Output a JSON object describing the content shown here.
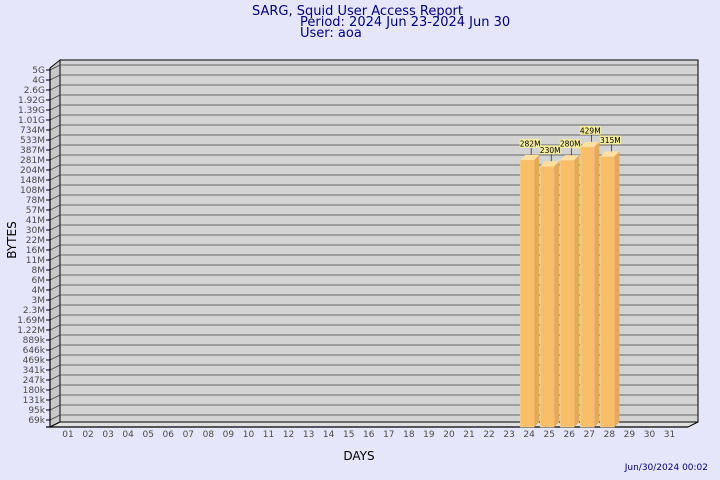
{
  "header": {
    "title": "SARG, Squid User Access Report",
    "period": "Period: 2024 Jun 23-2024 Jun 30",
    "user": "User: aoa"
  },
  "footer": {
    "timestamp": "Jun/30/2024 00:02"
  },
  "colors": {
    "background": "#e6e6fa",
    "plot_area": "#d3d3d3",
    "bar_front": "#f8bf68",
    "bar_side": "#e8a85a",
    "bar_top": "#ffe0a0",
    "label_box": "#f4eca0",
    "title_text": "#00007d"
  },
  "chart_data": {
    "type": "bar",
    "title": "SARG, Squid User Access Report",
    "xlabel": "DAYS",
    "ylabel": "BYTES",
    "scale": "log",
    "grid": true,
    "x_ticks": [
      "01",
      "02",
      "03",
      "04",
      "05",
      "06",
      "07",
      "08",
      "09",
      "10",
      "11",
      "12",
      "13",
      "14",
      "15",
      "16",
      "17",
      "18",
      "19",
      "20",
      "21",
      "22",
      "23",
      "24",
      "25",
      "26",
      "27",
      "28",
      "29",
      "30",
      "31"
    ],
    "y_ticks": [
      "69k",
      "95k",
      "131k",
      "180k",
      "247k",
      "341k",
      "469k",
      "646k",
      "889k",
      "1.22M",
      "1.69M",
      "2.3M",
      "3M",
      "4M",
      "6M",
      "8M",
      "11M",
      "16M",
      "22M",
      "30M",
      "41M",
      "57M",
      "78M",
      "108M",
      "148M",
      "204M",
      "281M",
      "387M",
      "533M",
      "734M",
      "1.01G",
      "1.39G",
      "1.92G",
      "2.6G",
      "4G",
      "5G"
    ],
    "categories": [
      "24",
      "25",
      "26",
      "27",
      "28"
    ],
    "values": [
      282000000,
      230000000,
      280000000,
      429000000,
      315000000
    ],
    "value_labels": [
      "282M",
      "230M",
      "280M",
      "429M",
      "315M"
    ]
  }
}
